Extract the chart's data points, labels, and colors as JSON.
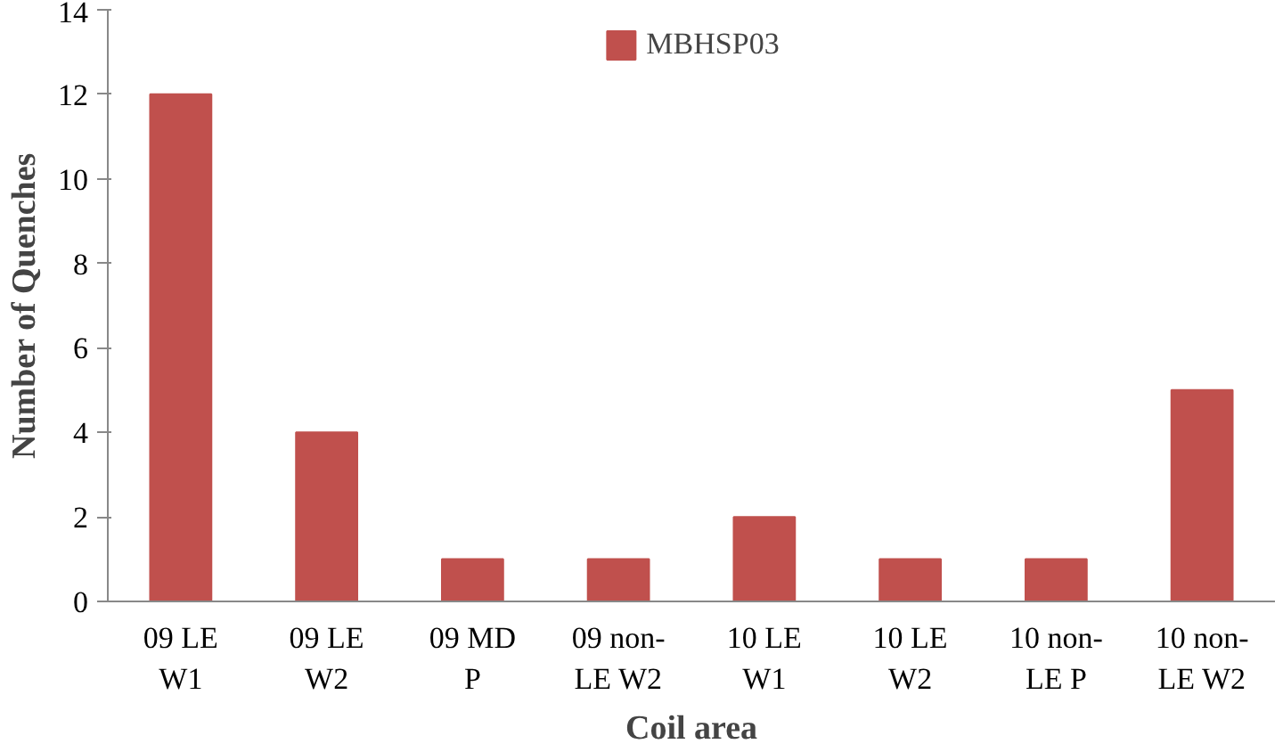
{
  "chart_data": {
    "type": "bar",
    "xlabel": "Coil area",
    "ylabel": "Number of Quenches",
    "categories": [
      "09 LE\nW1",
      "09 LE\nW2",
      "09 MD\nP",
      "09 non-\nLE W2",
      "10 LE\nW1",
      "10 LE\nW2",
      "10 non-\nLE P",
      "10 non-\nLE W2"
    ],
    "series": [
      {
        "name": "MBHSP03",
        "color": "#c0504d",
        "values": [
          12,
          4,
          1,
          1,
          2,
          1,
          1,
          5
        ]
      }
    ],
    "ylim": [
      0,
      14
    ],
    "yticks": [
      0,
      2,
      4,
      6,
      8,
      10,
      12,
      14
    ],
    "legend": "top"
  }
}
